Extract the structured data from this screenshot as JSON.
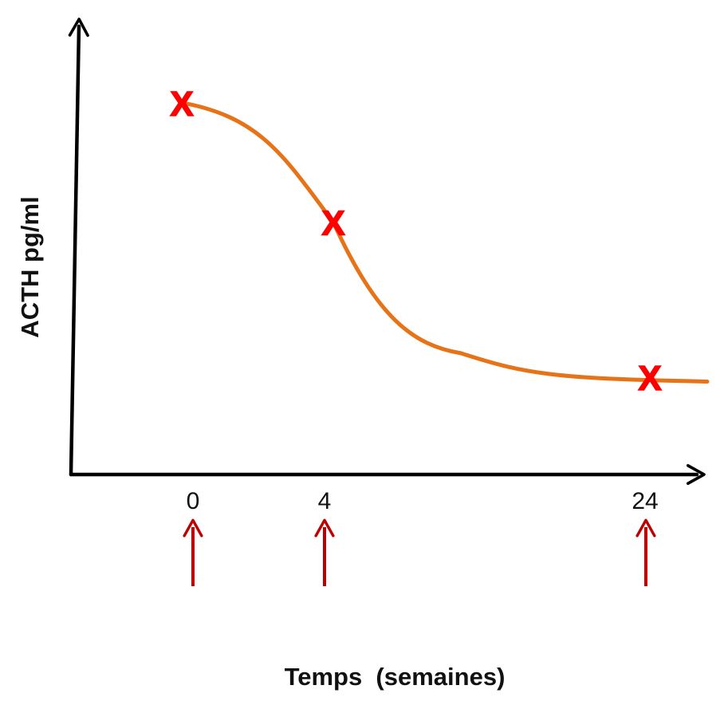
{
  "chart_data": {
    "type": "line",
    "title": "",
    "xlabel": "Temps  (semaines)",
    "ylabel": "ACTH pg/ml",
    "x_tick_labels": [
      "0",
      "4",
      "24"
    ],
    "series": [
      {
        "curve": "smooth-decreasing",
        "color": "#E67317"
      }
    ],
    "points": [
      {
        "tick": "0",
        "level": 0.84,
        "marker": "X"
      },
      {
        "tick": "4",
        "level": 0.57,
        "marker": "X"
      },
      {
        "tick": "24",
        "level": 0.22,
        "marker": "X"
      }
    ],
    "curve_tail_level": 0.21,
    "y_ticks": false,
    "grid": false,
    "legend": "none",
    "marker_color": "#FF0000",
    "arrow_color": "#C00000",
    "axis_color": "#000000"
  }
}
